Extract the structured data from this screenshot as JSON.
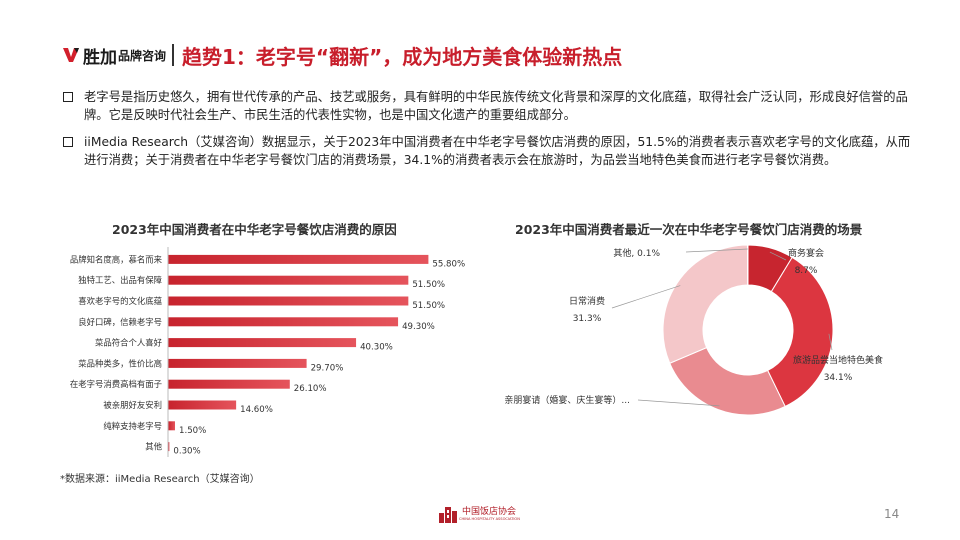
{
  "header": {
    "logo_main": "胜加",
    "logo_sub": "品牌咨询",
    "title": "趋势1：老字号“翻新”，成为地方美食体验新热点"
  },
  "bullets": [
    "老字号是指历史悠久，拥有世代传承的产品、技艺或服务，具有鲜明的中华民族传统文化背景和深厚的文化底蕴，取得社会广泛认同，形成良好信誉的品牌。它是反映时代社会生产、市民生活的代表性实物，也是中国文化遗产的重要组成部分。",
    "iiMedia Research（艾媒咨询）数据显示，关于2023年中国消费者在中华老字号餐饮店消费的原因，51.5%的消费者表示喜欢老字号的文化底蕴，从而进行消费；关于消费者在中华老字号餐饮门店的消费场景，34.1%的消费者表示会在旅游时，为品尝当地特色美食而进行老字号餐饮消费。"
  ],
  "chart_data": [
    {
      "type": "bar",
      "orientation": "horizontal",
      "title": "2023年中国消费者在中华老字号餐饮店消费的原因",
      "categories": [
        "品牌知名度高，慕名而来",
        "独特工艺、出品有保障",
        "喜欢老字号的文化底蕴",
        "良好口碑，信赖老字号",
        "菜品符合个人喜好",
        "菜品种类多，性价比高",
        "在老字号消费高档有面子",
        "被亲朋好友安利",
        "纯粹支持老字号",
        "其他"
      ],
      "values": [
        55.8,
        51.5,
        51.5,
        49.3,
        40.3,
        29.7,
        26.1,
        14.6,
        1.5,
        0.3
      ],
      "value_labels": [
        "55.80%",
        "51.50%",
        "51.50%",
        "49.30%",
        "40.30%",
        "29.70%",
        "26.10%",
        "14.60%",
        "1.50%",
        "0.30%"
      ],
      "xlim": [
        0,
        60
      ],
      "grid": false,
      "color": "#d9333f"
    },
    {
      "type": "pie",
      "subtype": "donut",
      "title": "2023年中国消费者最近一次在中华老字号餐饮门店消费的场景",
      "slices": [
        {
          "name": "商务宴会",
          "value": 8.7,
          "label": "8.7%",
          "color": "#c7252f"
        },
        {
          "name": "旅游品尝当地特色美食",
          "value": 34.1,
          "label": "34.1%",
          "color": "#dc3640"
        },
        {
          "name": "亲朋宴请（婚宴、庆生宴等）...",
          "value": 25.8,
          "label": "",
          "color": "#e98b90"
        },
        {
          "name": "日常消费",
          "value": 31.3,
          "label": "31.3%",
          "color": "#f4c7c9"
        },
        {
          "name": "其他",
          "value": 0.1,
          "label": "0.1%",
          "color": "#f6d6d8"
        }
      ]
    }
  ],
  "source": "*数据来源：iiMedia Research（艾媒咨询）",
  "footer": {
    "org_name": "中国饭店协会",
    "org_name_en": "CHINA HOSPITALITY ASSOCIATION",
    "page_number": "14"
  },
  "colors": {
    "accent": "#c81e2b",
    "bar": "#d9333f"
  }
}
